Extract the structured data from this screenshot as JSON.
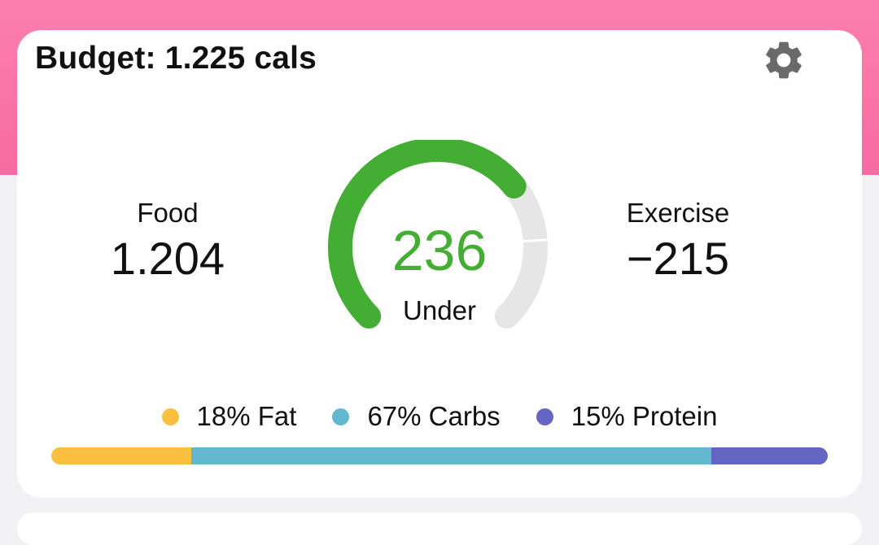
{
  "budget": {
    "title": "Budget: 1.225 cals"
  },
  "settings": {
    "icon": "gear-icon"
  },
  "food": {
    "label": "Food",
    "value": "1.204"
  },
  "exercise": {
    "label": "Exercise",
    "value": "−215"
  },
  "gauge": {
    "value": "236",
    "label": "Under",
    "fill_fraction": 0.69,
    "fill_color": "#44ad34",
    "track_color": "#e6e6e6"
  },
  "macros": [
    {
      "label": "18% Fat",
      "percent": 18,
      "color": "#fbbf40"
    },
    {
      "label": "67% Carbs",
      "percent": 67,
      "color": "#62b9cf"
    },
    {
      "label": "15% Protein",
      "percent": 15,
      "color": "#6466c2"
    }
  ],
  "colors": {
    "header_pink": "#f978aa",
    "accent_green": "#44ad34"
  }
}
